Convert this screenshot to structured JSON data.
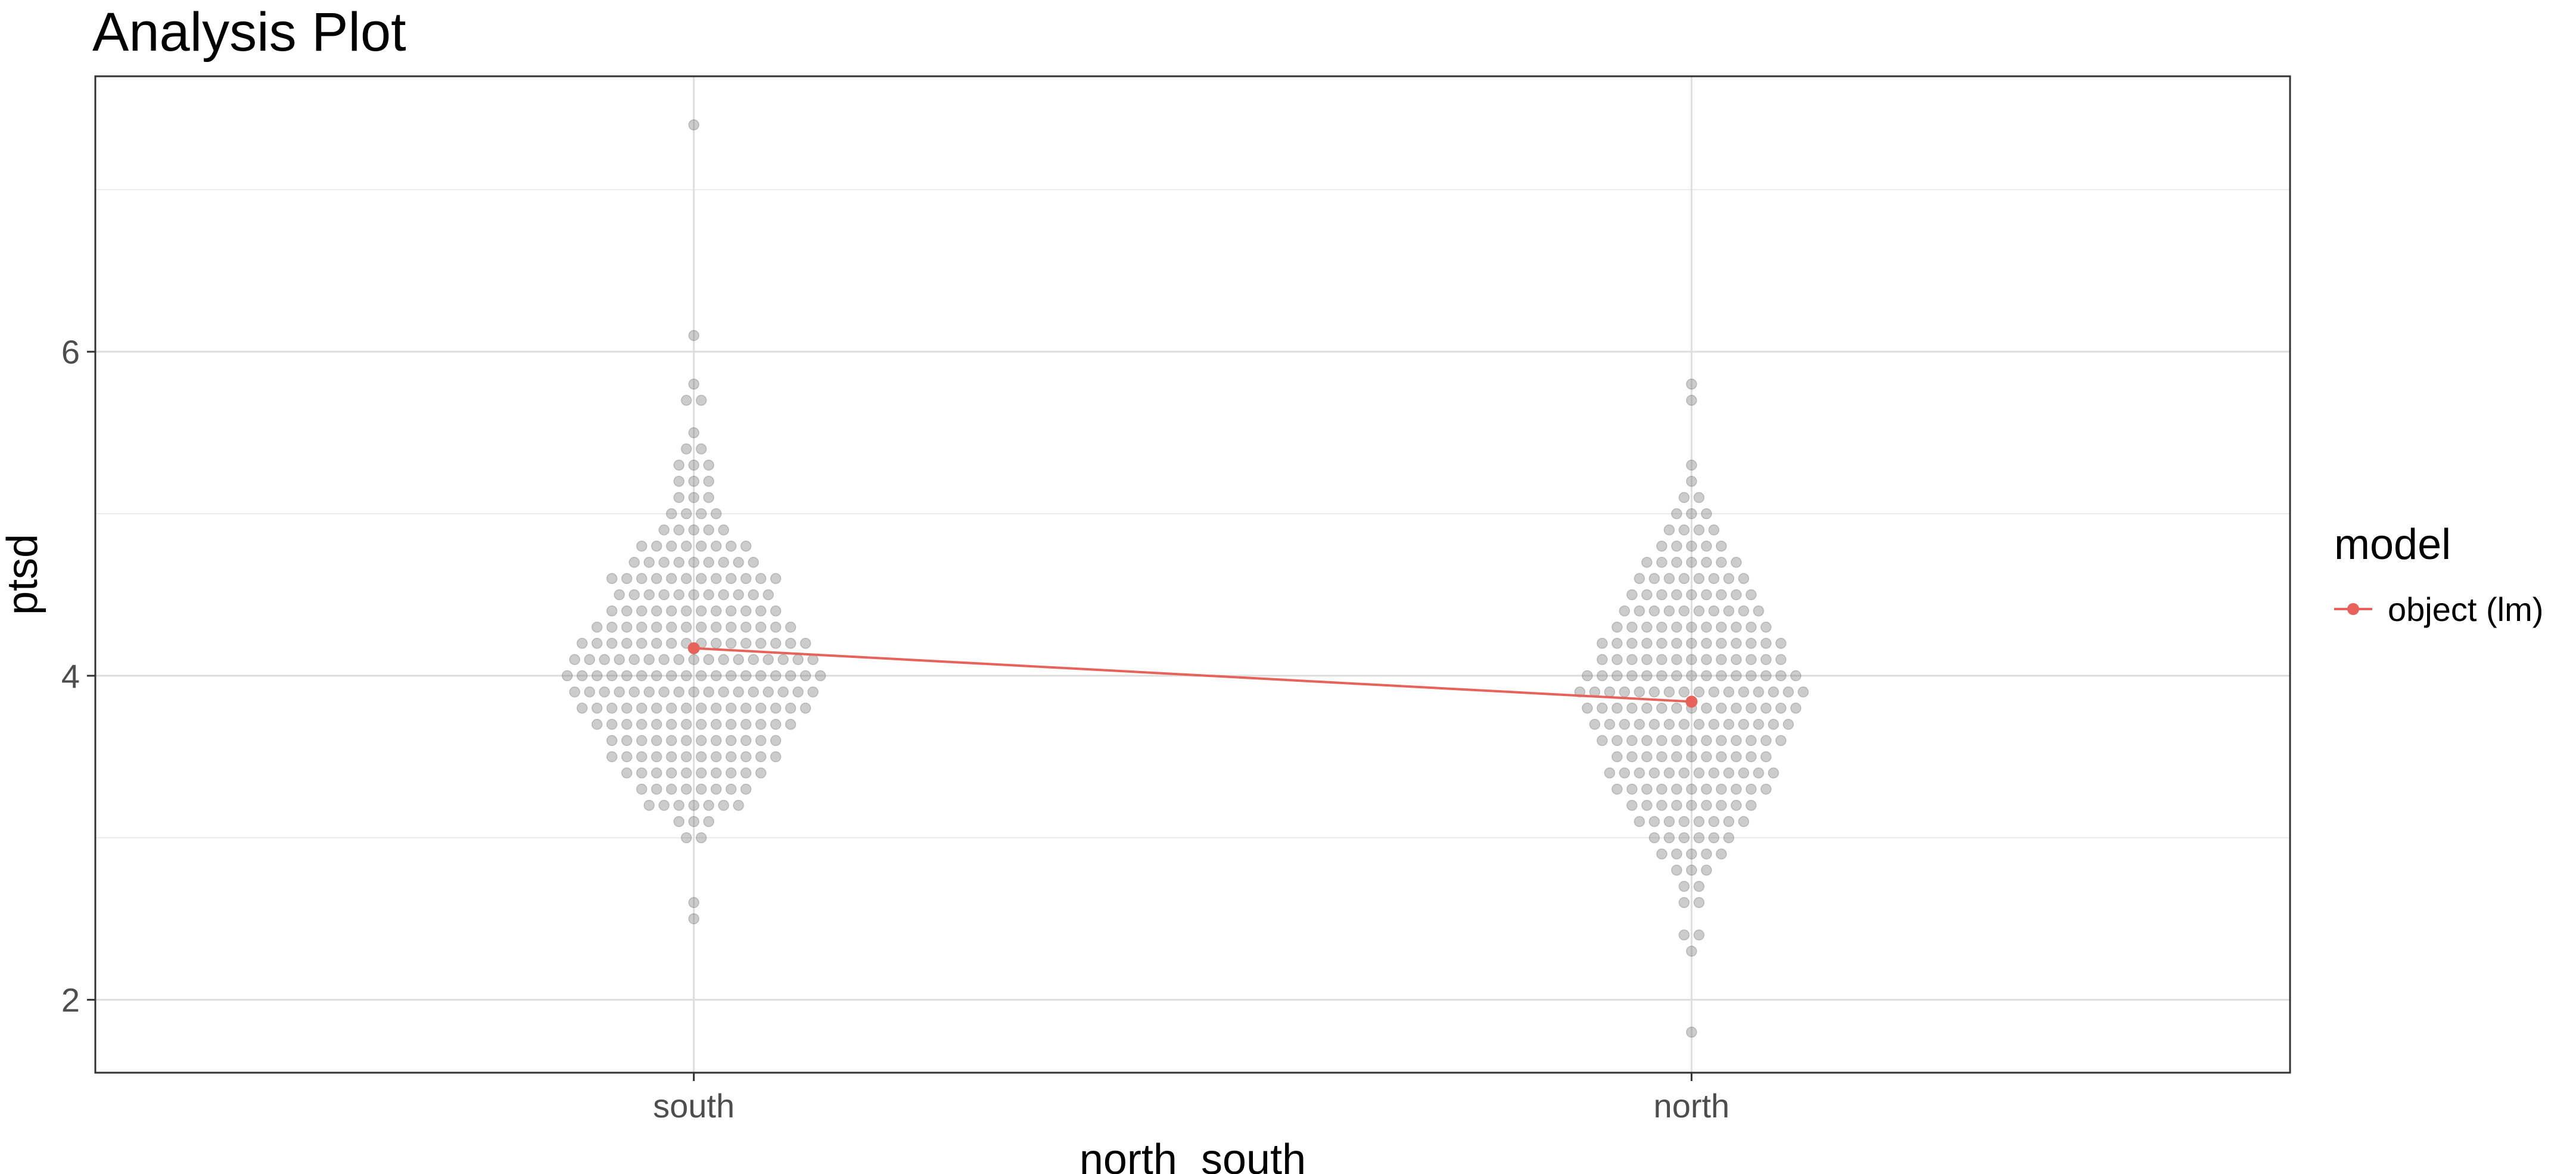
{
  "chart_data": {
    "type": "scatter",
    "title": "Analysis Plot",
    "xlabel": "north_south",
    "ylabel": "ptsd",
    "categories": [
      "south",
      "north"
    ],
    "ylim": [
      1.55,
      7.7
    ],
    "y_ticks": [
      2,
      4,
      6
    ],
    "y_tick_labels": [
      "2",
      "4",
      "6"
    ],
    "grid": true,
    "legend": {
      "title": "model",
      "position": "right",
      "entries": [
        {
          "label": "object (lm)",
          "color": "#e8625c"
        }
      ]
    },
    "groups": [
      {
        "category": "south",
        "point_color": "#7a7a7a",
        "ptsd_values": [
          7.4,
          6.1,
          5.8,
          5.7,
          5.7,
          5.5,
          5.4,
          5.4,
          5.3,
          5.3,
          5.3,
          5.2,
          5.2,
          5.2,
          5.1,
          5.1,
          5.1,
          5.0,
          5.0,
          5.0,
          5.0,
          4.9,
          4.9,
          4.9,
          4.9,
          4.9,
          4.8,
          4.8,
          4.8,
          4.8,
          4.8,
          4.8,
          4.8,
          4.8,
          4.7,
          4.7,
          4.7,
          4.7,
          4.7,
          4.7,
          4.7,
          4.7,
          4.7,
          4.6,
          4.6,
          4.6,
          4.6,
          4.6,
          4.6,
          4.6,
          4.6,
          4.6,
          4.6,
          4.6,
          4.6,
          4.5,
          4.5,
          4.5,
          4.5,
          4.5,
          4.5,
          4.5,
          4.5,
          4.5,
          4.5,
          4.5,
          4.4,
          4.4,
          4.4,
          4.4,
          4.4,
          4.4,
          4.4,
          4.4,
          4.4,
          4.4,
          4.4,
          4.4,
          4.3,
          4.3,
          4.3,
          4.3,
          4.3,
          4.3,
          4.3,
          4.3,
          4.3,
          4.3,
          4.3,
          4.3,
          4.3,
          4.3,
          4.2,
          4.2,
          4.2,
          4.2,
          4.2,
          4.2,
          4.2,
          4.2,
          4.2,
          4.2,
          4.2,
          4.2,
          4.2,
          4.2,
          4.2,
          4.2,
          4.1,
          4.1,
          4.1,
          4.1,
          4.1,
          4.1,
          4.1,
          4.1,
          4.1,
          4.1,
          4.1,
          4.1,
          4.1,
          4.1,
          4.1,
          4.1,
          4.1,
          4.0,
          4.0,
          4.0,
          4.0,
          4.0,
          4.0,
          4.0,
          4.0,
          4.0,
          4.0,
          4.0,
          4.0,
          4.0,
          4.0,
          4.0,
          4.0,
          4.0,
          4.0,
          3.9,
          3.9,
          3.9,
          3.9,
          3.9,
          3.9,
          3.9,
          3.9,
          3.9,
          3.9,
          3.9,
          3.9,
          3.9,
          3.9,
          3.9,
          3.9,
          3.9,
          3.8,
          3.8,
          3.8,
          3.8,
          3.8,
          3.8,
          3.8,
          3.8,
          3.8,
          3.8,
          3.8,
          3.8,
          3.8,
          3.8,
          3.8,
          3.8,
          3.7,
          3.7,
          3.7,
          3.7,
          3.7,
          3.7,
          3.7,
          3.7,
          3.7,
          3.7,
          3.7,
          3.7,
          3.7,
          3.7,
          3.6,
          3.6,
          3.6,
          3.6,
          3.6,
          3.6,
          3.6,
          3.6,
          3.6,
          3.6,
          3.6,
          3.6,
          3.5,
          3.5,
          3.5,
          3.5,
          3.5,
          3.5,
          3.5,
          3.5,
          3.5,
          3.5,
          3.5,
          3.5,
          3.4,
          3.4,
          3.4,
          3.4,
          3.4,
          3.4,
          3.4,
          3.4,
          3.4,
          3.4,
          3.3,
          3.3,
          3.3,
          3.3,
          3.3,
          3.3,
          3.3,
          3.3,
          3.2,
          3.2,
          3.2,
          3.2,
          3.2,
          3.2,
          3.2,
          3.1,
          3.1,
          3.1,
          3.0,
          3.0,
          2.6,
          2.5
        ]
      },
      {
        "category": "north",
        "point_color": "#7a7a7a",
        "ptsd_values": [
          5.8,
          5.7,
          5.3,
          5.2,
          5.1,
          5.1,
          5.0,
          5.0,
          5.0,
          4.9,
          4.9,
          4.9,
          4.9,
          4.8,
          4.8,
          4.8,
          4.8,
          4.8,
          4.7,
          4.7,
          4.7,
          4.7,
          4.7,
          4.7,
          4.7,
          4.6,
          4.6,
          4.6,
          4.6,
          4.6,
          4.6,
          4.6,
          4.6,
          4.5,
          4.5,
          4.5,
          4.5,
          4.5,
          4.5,
          4.5,
          4.5,
          4.5,
          4.4,
          4.4,
          4.4,
          4.4,
          4.4,
          4.4,
          4.4,
          4.4,
          4.4,
          4.4,
          4.3,
          4.3,
          4.3,
          4.3,
          4.3,
          4.3,
          4.3,
          4.3,
          4.3,
          4.3,
          4.3,
          4.2,
          4.2,
          4.2,
          4.2,
          4.2,
          4.2,
          4.2,
          4.2,
          4.2,
          4.2,
          4.2,
          4.2,
          4.2,
          4.1,
          4.1,
          4.1,
          4.1,
          4.1,
          4.1,
          4.1,
          4.1,
          4.1,
          4.1,
          4.1,
          4.1,
          4.1,
          4.0,
          4.0,
          4.0,
          4.0,
          4.0,
          4.0,
          4.0,
          4.0,
          4.0,
          4.0,
          4.0,
          4.0,
          4.0,
          4.0,
          4.0,
          3.9,
          3.9,
          3.9,
          3.9,
          3.9,
          3.9,
          3.9,
          3.9,
          3.9,
          3.9,
          3.9,
          3.9,
          3.9,
          3.9,
          3.9,
          3.9,
          3.8,
          3.8,
          3.8,
          3.8,
          3.8,
          3.8,
          3.8,
          3.8,
          3.8,
          3.8,
          3.8,
          3.8,
          3.8,
          3.8,
          3.8,
          3.7,
          3.7,
          3.7,
          3.7,
          3.7,
          3.7,
          3.7,
          3.7,
          3.7,
          3.7,
          3.7,
          3.7,
          3.7,
          3.7,
          3.6,
          3.6,
          3.6,
          3.6,
          3.6,
          3.6,
          3.6,
          3.6,
          3.6,
          3.6,
          3.6,
          3.6,
          3.6,
          3.5,
          3.5,
          3.5,
          3.5,
          3.5,
          3.5,
          3.5,
          3.5,
          3.5,
          3.5,
          3.5,
          3.4,
          3.4,
          3.4,
          3.4,
          3.4,
          3.4,
          3.4,
          3.4,
          3.4,
          3.4,
          3.4,
          3.4,
          3.3,
          3.3,
          3.3,
          3.3,
          3.3,
          3.3,
          3.3,
          3.3,
          3.3,
          3.3,
          3.3,
          3.2,
          3.2,
          3.2,
          3.2,
          3.2,
          3.2,
          3.2,
          3.2,
          3.2,
          3.1,
          3.1,
          3.1,
          3.1,
          3.1,
          3.1,
          3.1,
          3.1,
          3.0,
          3.0,
          3.0,
          3.0,
          3.0,
          3.0,
          2.9,
          2.9,
          2.9,
          2.9,
          2.9,
          2.8,
          2.8,
          2.8,
          2.7,
          2.7,
          2.6,
          2.6,
          2.4,
          2.4,
          2.3,
          1.8
        ]
      }
    ],
    "lm_fit": {
      "label": "object (lm)",
      "color": "#e8625c",
      "points": [
        {
          "category": "south",
          "value": 4.17
        },
        {
          "category": "north",
          "value": 3.84
        }
      ]
    }
  }
}
